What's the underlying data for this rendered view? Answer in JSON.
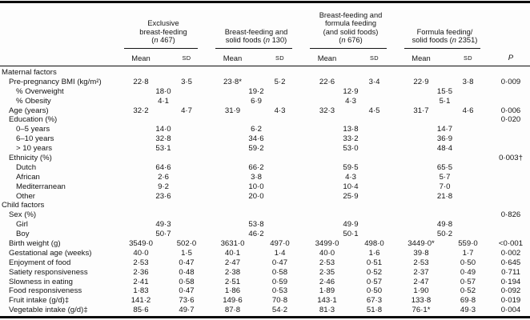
{
  "table": {
    "column_groups": [
      {
        "label_lines": [
          "Exclusive",
          "breast-feeding",
          "(n 467)"
        ]
      },
      {
        "label_lines": [
          "Breast-feeding and",
          "solid foods (n 130)"
        ]
      },
      {
        "label_lines": [
          "Breast-feeding and",
          "formula feeding",
          "(and solid foods)",
          "(n 676)"
        ]
      },
      {
        "label_lines": [
          "Formula feeding/",
          "solid foods (n 2351)"
        ]
      }
    ],
    "subheaders": {
      "mean": "Mean",
      "sd": "SD"
    },
    "p_header": "P",
    "rows": [
      {
        "type": "section",
        "label": "Maternal factors"
      },
      {
        "type": "data",
        "indent": 1,
        "label": "Pre-pregnancy BMI (kg/m²)",
        "cells": [
          [
            "22·8",
            "3·5"
          ],
          [
            "23·8*",
            "5·2"
          ],
          [
            "22·6",
            "3·4"
          ],
          [
            "22·9",
            "3·8"
          ]
        ],
        "p": "0·009"
      },
      {
        "type": "span",
        "indent": 2,
        "label": "% Overweight",
        "cells": [
          "18·0",
          "19·2",
          "12·9",
          "15·5"
        ],
        "p": ""
      },
      {
        "type": "span",
        "indent": 2,
        "label": "% Obesity",
        "cells": [
          "4·1",
          "6·9",
          "4·3",
          "5·1"
        ],
        "p": ""
      },
      {
        "type": "data",
        "indent": 1,
        "label": "Age (years)",
        "cells": [
          [
            "32·2",
            "4·7"
          ],
          [
            "31·9",
            "4·3"
          ],
          [
            "32·3",
            "4·5"
          ],
          [
            "31·7",
            "4·6"
          ]
        ],
        "p": "0·006"
      },
      {
        "type": "span",
        "indent": 1,
        "label": "Education (%)",
        "cells": [
          "",
          "",
          "",
          ""
        ],
        "p": "0·020"
      },
      {
        "type": "span",
        "indent": 2,
        "label": "0–5 years",
        "cells": [
          "14·0",
          "6·2",
          "13·8",
          "14·7"
        ],
        "p": ""
      },
      {
        "type": "span",
        "indent": 2,
        "label": "6–10 years",
        "cells": [
          "32·8",
          "34·6",
          "33·2",
          "36·9"
        ],
        "p": ""
      },
      {
        "type": "span",
        "indent": 2,
        "label": "> 10 years",
        "cells": [
          "53·1",
          "59·2",
          "53·0",
          "48·4"
        ],
        "p": ""
      },
      {
        "type": "span",
        "indent": 1,
        "label": "Ethnicity (%)",
        "cells": [
          "",
          "",
          "",
          ""
        ],
        "p": "0·003†"
      },
      {
        "type": "span",
        "indent": 2,
        "label": "Dutch",
        "cells": [
          "64·6",
          "66·2",
          "59·5",
          "65·5"
        ],
        "p": ""
      },
      {
        "type": "span",
        "indent": 2,
        "label": "African",
        "cells": [
          "2·6",
          "3·8",
          "4·3",
          "5·7"
        ],
        "p": ""
      },
      {
        "type": "span",
        "indent": 2,
        "label": "Mediterranean",
        "cells": [
          "9·2",
          "10·0",
          "10·4",
          "7·0"
        ],
        "p": ""
      },
      {
        "type": "span",
        "indent": 2,
        "label": "Other",
        "cells": [
          "23·6",
          "20·0",
          "25·9",
          "21·8"
        ],
        "p": ""
      },
      {
        "type": "section",
        "label": "Child factors"
      },
      {
        "type": "span",
        "indent": 1,
        "label": "Sex (%)",
        "cells": [
          "",
          "",
          "",
          ""
        ],
        "p": "0·826"
      },
      {
        "type": "span",
        "indent": 2,
        "label": "Girl",
        "cells": [
          "49·3",
          "53·8",
          "49·9",
          "49·8"
        ],
        "p": ""
      },
      {
        "type": "span",
        "indent": 2,
        "label": "Boy",
        "cells": [
          "50·7",
          "46·2",
          "50·1",
          "50·2"
        ],
        "p": ""
      },
      {
        "type": "data",
        "indent": 1,
        "label": "Birth weight (g)",
        "cells": [
          [
            "3549·0",
            "502·0"
          ],
          [
            "3631·0",
            "497·0"
          ],
          [
            "3499·0",
            "498·0"
          ],
          [
            "3449·0*",
            "559·0"
          ]
        ],
        "p": "<0·001"
      },
      {
        "type": "data",
        "indent": 1,
        "label": "Gestational age (weeks)",
        "cells": [
          [
            "40·0",
            "1·5"
          ],
          [
            "40·1",
            "1·4"
          ],
          [
            "40·0",
            "1·6"
          ],
          [
            "39·8",
            "1·7"
          ]
        ],
        "p": "0·002"
      },
      {
        "type": "data",
        "indent": 1,
        "label": "Enjoyment of food",
        "cells": [
          [
            "2·53",
            "0·47"
          ],
          [
            "2·47",
            "0·47"
          ],
          [
            "2·53",
            "0·51"
          ],
          [
            "2·53",
            "0·50"
          ]
        ],
        "p": "0·645"
      },
      {
        "type": "data",
        "indent": 1,
        "label": "Satiety responsiveness",
        "cells": [
          [
            "2·36",
            "0·48"
          ],
          [
            "2·38",
            "0·58"
          ],
          [
            "2·35",
            "0·52"
          ],
          [
            "2·37",
            "0·49"
          ]
        ],
        "p": "0·711"
      },
      {
        "type": "data",
        "indent": 1,
        "label": "Slowness in eating",
        "cells": [
          [
            "2·41",
            "0·58"
          ],
          [
            "2·51",
            "0·59"
          ],
          [
            "2·46",
            "0·57"
          ],
          [
            "2·47",
            "0·57"
          ]
        ],
        "p": "0·194"
      },
      {
        "type": "data",
        "indent": 1,
        "label": "Food responsiveness",
        "cells": [
          [
            "1·83",
            "0·47"
          ],
          [
            "1·86",
            "0·53"
          ],
          [
            "1·89",
            "0·50"
          ],
          [
            "1·90",
            "0·52"
          ]
        ],
        "p": "0·092"
      },
      {
        "type": "data",
        "indent": 1,
        "label": "Fruit intake (g/d)‡",
        "cells": [
          [
            "141·2",
            "73·6"
          ],
          [
            "149·6",
            "70·8"
          ],
          [
            "143·1",
            "67·3"
          ],
          [
            "133·8",
            "69·8"
          ]
        ],
        "p": "0·019"
      },
      {
        "type": "data",
        "indent": 1,
        "label": "Vegetable intake (g/d)‡",
        "cells": [
          [
            "85·6",
            "49·7"
          ],
          [
            "87·8",
            "54·2"
          ],
          [
            "81·3",
            "51·8"
          ],
          [
            "76·1*",
            "49·3"
          ]
        ],
        "p": "0·004"
      }
    ]
  }
}
